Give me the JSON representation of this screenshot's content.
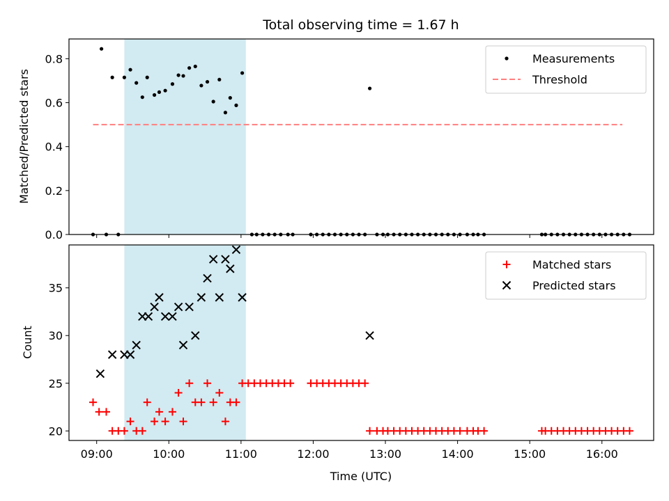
{
  "chart_data": {
    "title": "Total observing time = 1.67 h",
    "xlabel": "Time (UTC)",
    "x_ticks": [
      "09:00",
      "10:00",
      "11:00",
      "12:00",
      "13:00",
      "14:00",
      "15:00",
      "16:00"
    ],
    "x_range": [
      "08:37",
      "16:43"
    ],
    "shaded_interval": {
      "start": "09:23",
      "end": "11:04",
      "color": "#add8e6"
    },
    "colors": {
      "measurements": "#000000",
      "threshold": "#ff7f7f",
      "matched": "#ff0000",
      "predicted": "#000000"
    },
    "panels": [
      {
        "type": "scatter",
        "ylabel": "Matched/Predicted stars",
        "ylim": [
          0,
          0.89
        ],
        "y_ticks": [
          "0.0",
          "0.2",
          "0.4",
          "0.6",
          "0.8"
        ],
        "legend_position": "top-right",
        "series": [
          {
            "name": "Measurements",
            "kind": "scatter",
            "x": [
              "08:57",
              "09:04",
              "09:08",
              "09:13",
              "09:18",
              "09:23",
              "09:28",
              "09:33",
              "09:38",
              "09:42",
              "09:48",
              "09:52",
              "09:57",
              "10:03",
              "10:08",
              "10:12",
              "10:17",
              "10:22",
              "10:27",
              "10:32",
              "10:37",
              "10:42",
              "10:47",
              "10:51",
              "10:56",
              "11:01",
              "11:09",
              "11:13",
              "11:18",
              "11:23",
              "11:28",
              "11:33",
              "11:39",
              "11:43",
              "11:58",
              "12:03",
              "12:08",
              "12:13",
              "12:18",
              "12:23",
              "12:28",
              "12:33",
              "12:38",
              "12:43",
              "12:47",
              "12:53",
              "12:58",
              "13:02",
              "13:07",
              "13:12",
              "13:17",
              "13:22",
              "13:27",
              "13:32",
              "13:37",
              "13:42",
              "13:47",
              "13:52",
              "13:57",
              "14:02",
              "14:08",
              "14:13",
              "14:17",
              "14:22",
              "15:10",
              "15:13",
              "15:18",
              "15:23",
              "15:28",
              "15:33",
              "15:38",
              "15:43",
              "15:48",
              "15:53",
              "15:58",
              "16:03",
              "16:08",
              "16:13",
              "16:18",
              "16:23"
            ],
            "y": [
              0,
              0.845,
              0,
              0.715,
              0,
              0.715,
              0.75,
              0.69,
              0.625,
              0.715,
              0.635,
              0.648,
              0.655,
              0.685,
              0.725,
              0.722,
              0.758,
              0.765,
              0.678,
              0.695,
              0.605,
              0.705,
              0.555,
              0.622,
              0.588,
              0.735,
              0,
              0,
              0,
              0,
              0,
              0,
              0,
              0,
              0,
              0,
              0,
              0,
              0,
              0,
              0,
              0,
              0,
              0,
              0.665,
              0,
              0,
              0,
              0,
              0,
              0,
              0,
              0,
              0,
              0,
              0,
              0,
              0,
              0,
              0,
              0,
              0,
              0,
              0,
              0,
              0,
              0,
              0,
              0,
              0,
              0,
              0,
              0,
              0,
              0,
              0,
              0,
              0,
              0,
              0
            ]
          },
          {
            "name": "Threshold",
            "kind": "dashed-line",
            "x": [
              "08:57",
              "16:17"
            ],
            "y": [
              0.5,
              0.5
            ]
          }
        ]
      },
      {
        "type": "scatter",
        "ylabel": "Count",
        "ylim": [
          19,
          39.5
        ],
        "y_ticks": [
          "20",
          "25",
          "30",
          "35"
        ],
        "legend_position": "top-right",
        "series": [
          {
            "name": "Matched stars",
            "kind": "plus",
            "x": [
              "08:57",
              "09:02",
              "09:08",
              "09:13",
              "09:18",
              "09:23",
              "09:28",
              "09:33",
              "09:38",
              "09:42",
              "09:48",
              "09:52",
              "09:57",
              "10:03",
              "10:08",
              "10:12",
              "10:17",
              "10:22",
              "10:27",
              "10:32",
              "10:37",
              "10:42",
              "10:47",
              "10:51",
              "10:56",
              "11:01",
              "11:06",
              "11:11",
              "11:16",
              "11:21",
              "11:26",
              "11:31",
              "11:36",
              "11:41",
              "11:58",
              "12:03",
              "12:08",
              "12:13",
              "12:18",
              "12:23",
              "12:28",
              "12:33",
              "12:38",
              "12:43",
              "12:47",
              "12:53",
              "12:58",
              "13:02",
              "13:07",
              "13:12",
              "13:17",
              "13:22",
              "13:27",
              "13:32",
              "13:37",
              "13:42",
              "13:47",
              "13:52",
              "13:57",
              "14:02",
              "14:08",
              "14:13",
              "14:17",
              "14:22",
              "15:10",
              "15:13",
              "15:18",
              "15:23",
              "15:28",
              "15:33",
              "15:38",
              "15:43",
              "15:48",
              "15:53",
              "15:58",
              "16:03",
              "16:08",
              "16:13",
              "16:18",
              "16:23"
            ],
            "y": [
              23,
              22,
              22,
              20,
              20,
              20,
              21,
              20,
              20,
              23,
              21,
              22,
              21,
              22,
              24,
              21,
              25,
              23,
              23,
              25,
              23,
              24,
              21,
              23,
              23,
              25,
              25,
              25,
              25,
              25,
              25,
              25,
              25,
              25,
              25,
              25,
              25,
              25,
              25,
              25,
              25,
              25,
              25,
              25,
              20,
              20,
              20,
              20,
              20,
              20,
              20,
              20,
              20,
              20,
              20,
              20,
              20,
              20,
              20,
              20,
              20,
              20,
              20,
              20,
              20,
              20,
              20,
              20,
              20,
              20,
              20,
              20,
              20,
              20,
              20,
              20,
              20,
              20,
              20,
              20
            ]
          },
          {
            "name": "Predicted stars",
            "kind": "x",
            "x": [
              "09:03",
              "09:13",
              "09:23",
              "09:28",
              "09:33",
              "09:38",
              "09:43",
              "09:48",
              "09:52",
              "09:57",
              "10:03",
              "10:08",
              "10:12",
              "10:17",
              "10:22",
              "10:27",
              "10:32",
              "10:37",
              "10:42",
              "10:47",
              "10:51",
              "10:56",
              "11:01",
              "12:47"
            ],
            "y": [
              26,
              28,
              28,
              28,
              29,
              32,
              32,
              33,
              34,
              32,
              32,
              33,
              29,
              33,
              30,
              34,
              36,
              38,
              34,
              38,
              37,
              39,
              34,
              30
            ]
          }
        ]
      }
    ]
  }
}
